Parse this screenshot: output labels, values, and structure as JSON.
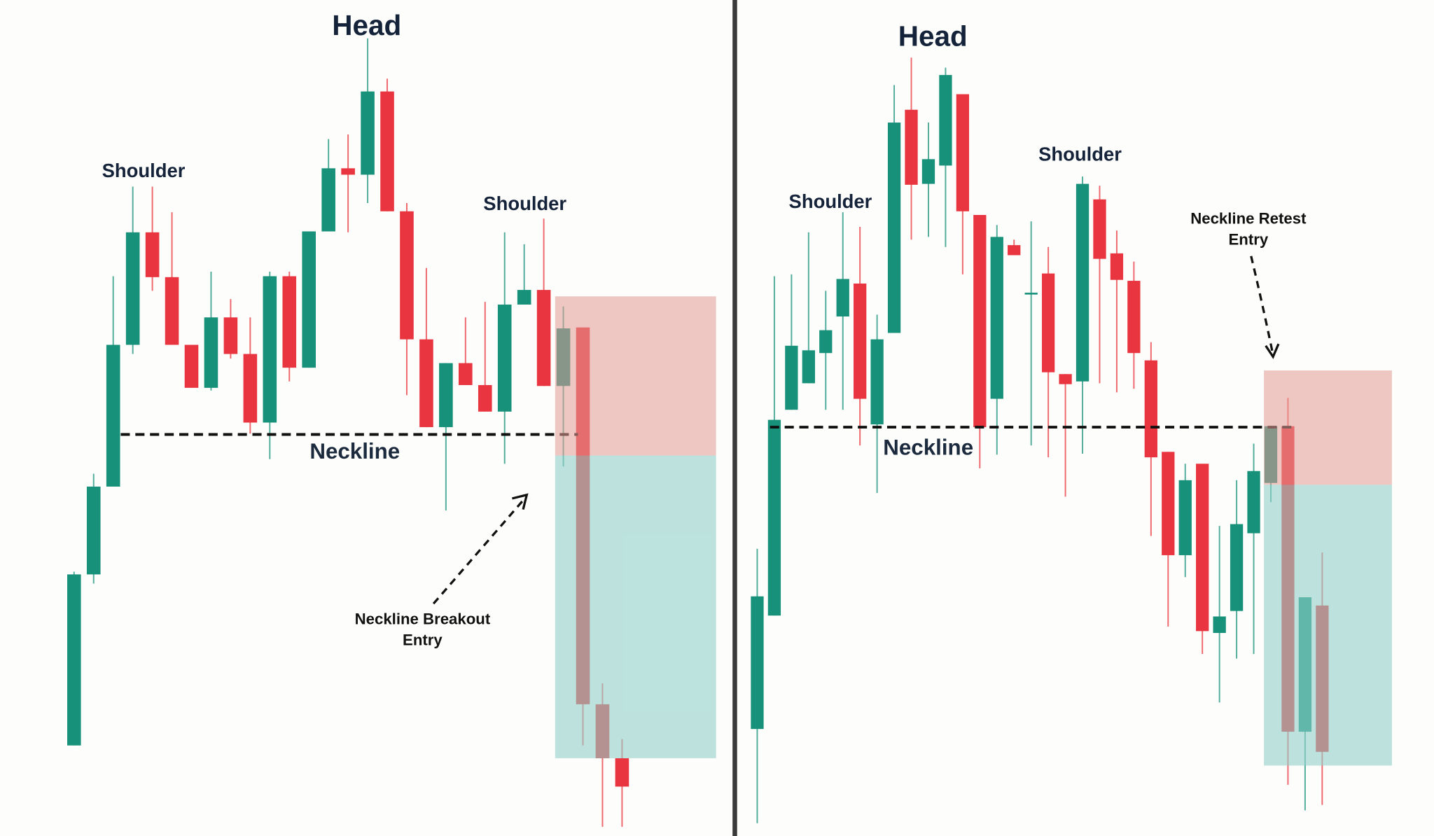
{
  "chart_data": [
    {
      "type": "candlestick",
      "ylim": [
        0,
        914
      ],
      "up_color": "#17917a",
      "down_color": "#e9353f",
      "neckline": 439,
      "labels": {
        "head": "Head",
        "left_shoulder": "Shoulder",
        "right_shoulder": "Shoulder",
        "neckline": "Neckline",
        "entry": [
          "Neckline Breakout",
          "Entry"
        ]
      },
      "open": [
        99,
        286,
        382,
        537,
        660,
        611,
        537,
        490,
        567,
        527,
        452,
        612,
        512,
        661,
        730,
        723,
        814,
        683,
        543,
        447,
        517,
        493,
        464,
        581,
        597,
        492,
        556,
        144,
        85
      ],
      "close": [
        286,
        382,
        537,
        660,
        611,
        537,
        490,
        567,
        527,
        452,
        612,
        512,
        661,
        730,
        723,
        814,
        683,
        543,
        447,
        517,
        493,
        464,
        581,
        597,
        492,
        555,
        144,
        85,
        54
      ],
      "high": [
        289,
        396,
        612,
        710,
        710,
        682,
        537,
        617,
        587,
        567,
        617,
        617,
        661,
        762,
        767,
        872,
        828,
        692,
        621,
        517,
        567,
        584,
        660,
        647,
        675,
        579,
        556,
        167,
        106
      ],
      "low": [
        99,
        276,
        382,
        527,
        596,
        537,
        490,
        487,
        522,
        440,
        412,
        497,
        512,
        661,
        660,
        692,
        683,
        482,
        447,
        356,
        493,
        464,
        407,
        581,
        492,
        404,
        99,
        10,
        10
      ]
    },
    {
      "type": "candlestick",
      "ylim": [
        0,
        914
      ],
      "up_color": "#17917a",
      "down_color": "#e9353f",
      "neckline": 447,
      "labels": {
        "head": "Head",
        "left_shoulder": "Shoulder",
        "right_shoulder": "Shoulder",
        "neckline": "Neckline",
        "entry": [
          "Neckline Retest",
          "Entry"
        ]
      },
      "open": [
        117,
        241,
        466,
        495,
        528,
        568,
        604,
        450,
        550,
        794,
        713,
        733,
        811,
        679,
        478,
        646,
        592,
        615,
        505,
        497,
        696,
        637,
        607,
        520,
        420,
        307,
        407,
        222,
        246,
        331,
        386,
        448,
        114,
        252
      ],
      "close": [
        262,
        455,
        536,
        531,
        553,
        609,
        478,
        543,
        780,
        712,
        740,
        832,
        683,
        447,
        655,
        635,
        594,
        507,
        494,
        713,
        631,
        608,
        528,
        414,
        307,
        389,
        224,
        240,
        341,
        399,
        448,
        114,
        261,
        92
      ],
      "high": [
        314,
        612,
        614,
        660,
        596,
        682,
        666,
        570,
        821,
        851,
        780,
        840,
        811,
        679,
        668,
        652,
        672,
        644,
        505,
        721,
        711,
        662,
        628,
        540,
        420,
        407,
        407,
        339,
        389,
        429,
        448,
        479,
        261,
        310
      ],
      "low": [
        14,
        241,
        466,
        495,
        466,
        466,
        427,
        375,
        550,
        652,
        655,
        644,
        614,
        402,
        417,
        635,
        427,
        414,
        371,
        418,
        495,
        485,
        489,
        328,
        229,
        283,
        199,
        146,
        194,
        199,
        365,
        56,
        28,
        34
      ]
    }
  ]
}
